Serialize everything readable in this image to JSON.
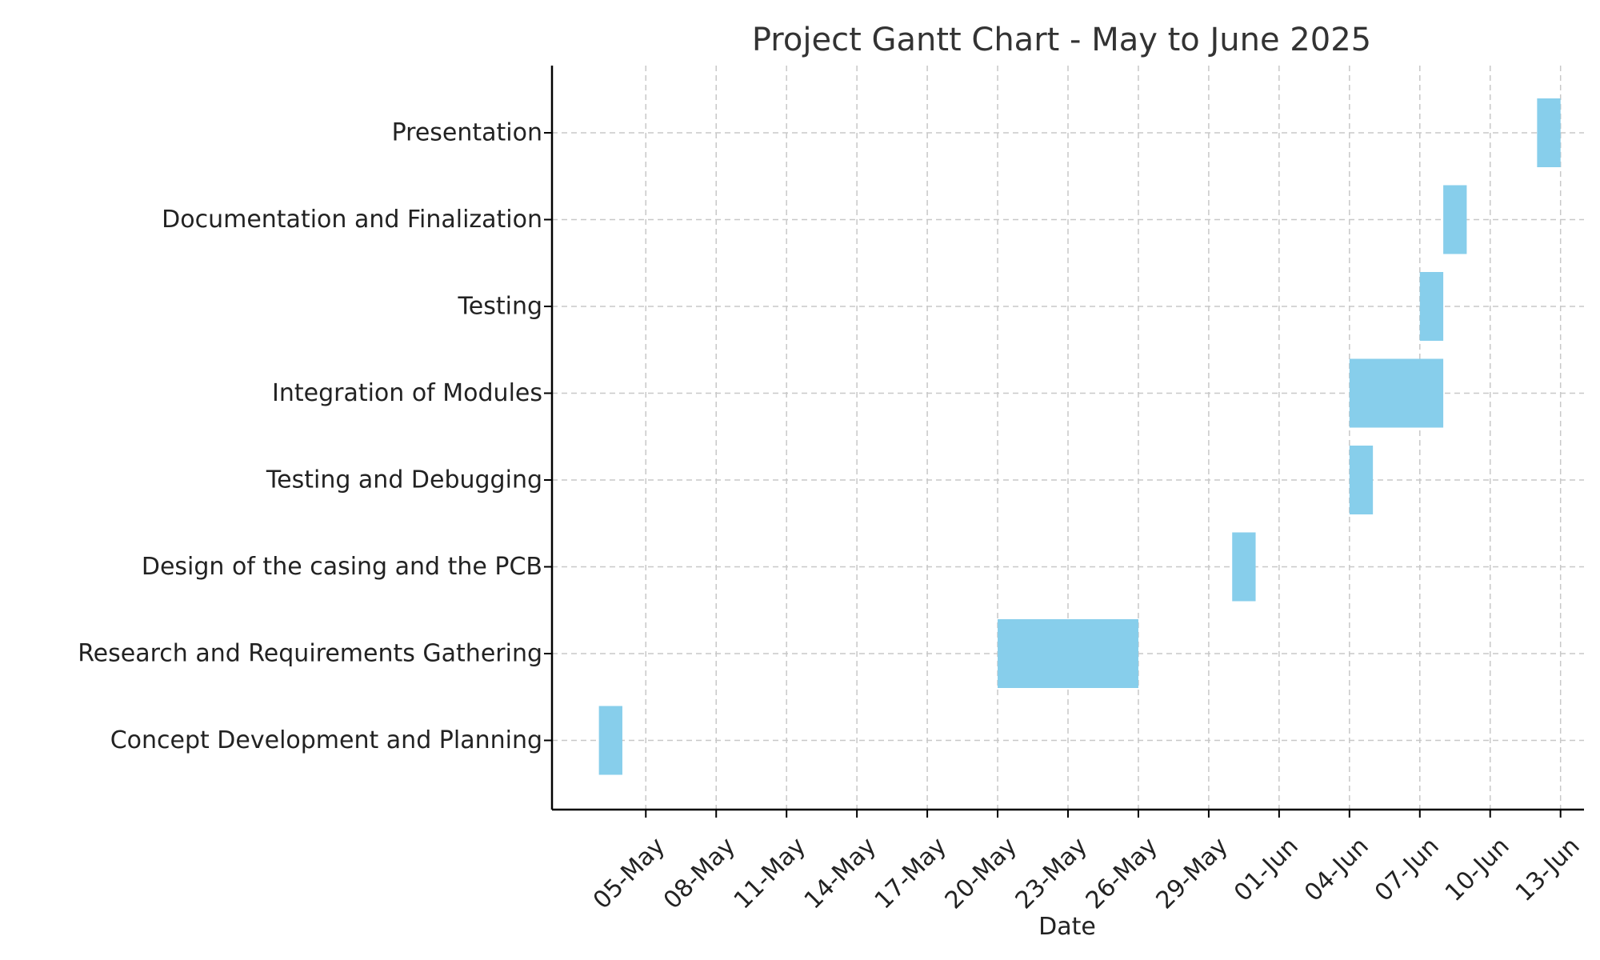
{
  "chart_data": {
    "type": "gantt",
    "title": "Project Gantt Chart - May to June 2025",
    "xlabel": "Date",
    "ylabel": "",
    "x_axis": "date",
    "xlim": [
      "2025-05-01",
      "2025-06-14"
    ],
    "x_ticks": [
      {
        "date": "2025-05-05",
        "label": "05-May"
      },
      {
        "date": "2025-05-08",
        "label": "08-May"
      },
      {
        "date": "2025-05-11",
        "label": "11-May"
      },
      {
        "date": "2025-05-14",
        "label": "14-May"
      },
      {
        "date": "2025-05-17",
        "label": "17-May"
      },
      {
        "date": "2025-05-20",
        "label": "20-May"
      },
      {
        "date": "2025-05-23",
        "label": "23-May"
      },
      {
        "date": "2025-05-26",
        "label": "26-May"
      },
      {
        "date": "2025-05-29",
        "label": "29-May"
      },
      {
        "date": "2025-06-01",
        "label": "01-Jun"
      },
      {
        "date": "2025-06-04",
        "label": "04-Jun"
      },
      {
        "date": "2025-06-07",
        "label": "07-Jun"
      },
      {
        "date": "2025-06-10",
        "label": "10-Jun"
      },
      {
        "date": "2025-06-13",
        "label": "13-Jun"
      }
    ],
    "grid": true,
    "bar_color": "#87ceeb",
    "tasks": [
      {
        "name": "Concept Development and Planning",
        "start": "2025-05-03",
        "end": "2025-05-04"
      },
      {
        "name": "Research and Requirements Gathering",
        "start": "2025-05-20",
        "end": "2025-05-26"
      },
      {
        "name": "Design of the casing and the PCB",
        "start": "2025-05-30",
        "end": "2025-05-31"
      },
      {
        "name": "Testing and Debugging",
        "start": "2025-06-04",
        "end": "2025-06-05"
      },
      {
        "name": "Integration of Modules",
        "start": "2025-06-04",
        "end": "2025-06-08"
      },
      {
        "name": "Testing",
        "start": "2025-06-07",
        "end": "2025-06-08"
      },
      {
        "name": "Documentation and Finalization",
        "start": "2025-06-08",
        "end": "2025-06-09"
      },
      {
        "name": "Presentation",
        "start": "2025-06-12",
        "end": "2025-06-13"
      }
    ]
  }
}
